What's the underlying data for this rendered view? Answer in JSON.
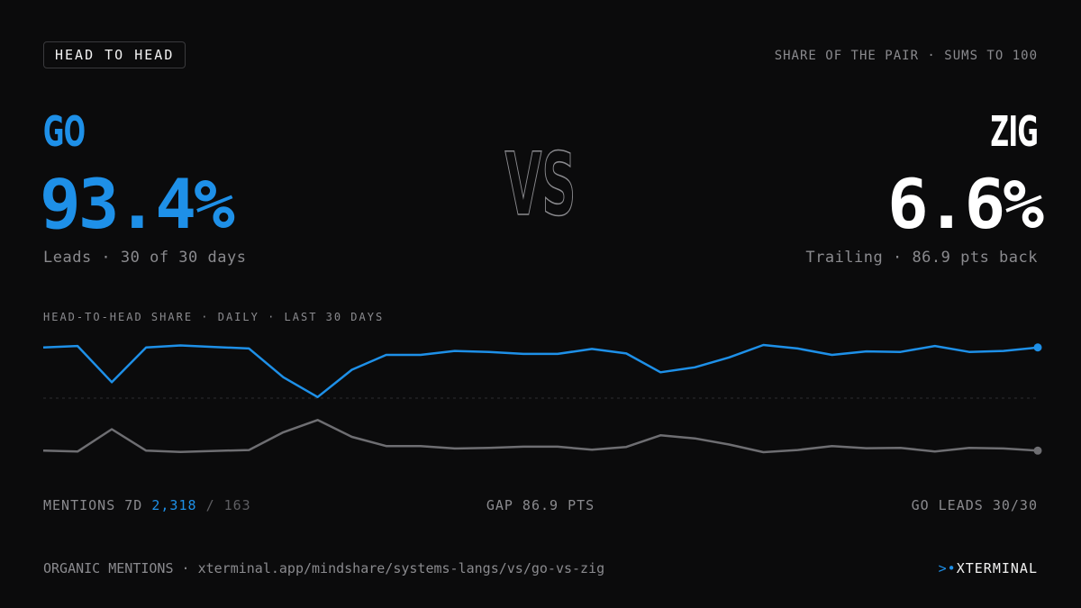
{
  "badge": "HEAD TO HEAD",
  "share_note": "SHARE OF THE PAIR · SUMS TO 100",
  "left": {
    "name": "GO",
    "percent": "93.4%",
    "subtitle": "Leads · 30 of 30 days"
  },
  "right": {
    "name": "ZIG",
    "percent": "6.6%",
    "subtitle": "Trailing · 86.9 pts back"
  },
  "vs_label": "VS",
  "chart_label": "HEAD-TO-HEAD SHARE · DAILY · LAST 30 DAYS",
  "stats": {
    "mentions_label": "MENTIONS 7D",
    "mentions_go": "2,318",
    "mentions_sep": "/",
    "mentions_zig": "163",
    "gap": "GAP 86.9 PTS",
    "leads": "GO LEADS 30/30"
  },
  "footer": {
    "source": "ORGANIC MENTIONS",
    "sep": "·",
    "url": "xterminal.app/mindshare/systems-langs/vs/go-vs-zig"
  },
  "brand": {
    "mark": ">•",
    "name": "XTERMINAL"
  },
  "colors": {
    "go": "#1e90e8",
    "zig": "#6e6e72",
    "background": "#0b0b0c"
  },
  "chart_data": {
    "type": "line",
    "x": [
      1,
      2,
      3,
      4,
      5,
      6,
      7,
      8,
      9,
      10,
      11,
      12,
      13,
      14,
      15,
      16,
      17,
      18,
      19,
      20,
      21,
      22,
      23,
      24,
      25,
      26,
      27,
      28,
      29,
      30
    ],
    "series": [
      {
        "name": "GO",
        "values": [
          94.5,
          94.8,
          87.5,
          94.5,
          94.9,
          94.6,
          94.3,
          88.5,
          84.5,
          90.0,
          93.0,
          93.0,
          93.8,
          93.6,
          93.2,
          93.2,
          94.2,
          93.3,
          89.5,
          90.5,
          92.5,
          95.0,
          94.3,
          93.0,
          93.7,
          93.6,
          94.8,
          93.6,
          93.8,
          94.5
        ]
      },
      {
        "name": "ZIG",
        "values": [
          5.5,
          5.2,
          12.5,
          5.5,
          5.1,
          5.4,
          5.7,
          11.5,
          15.5,
          10.0,
          7.0,
          7.0,
          6.2,
          6.4,
          6.8,
          6.8,
          5.8,
          6.7,
          10.5,
          9.5,
          7.5,
          5.0,
          5.7,
          7.0,
          6.3,
          6.4,
          5.2,
          6.4,
          6.2,
          5.5
        ]
      }
    ],
    "ylim": [
      0,
      100
    ],
    "grid": false
  }
}
